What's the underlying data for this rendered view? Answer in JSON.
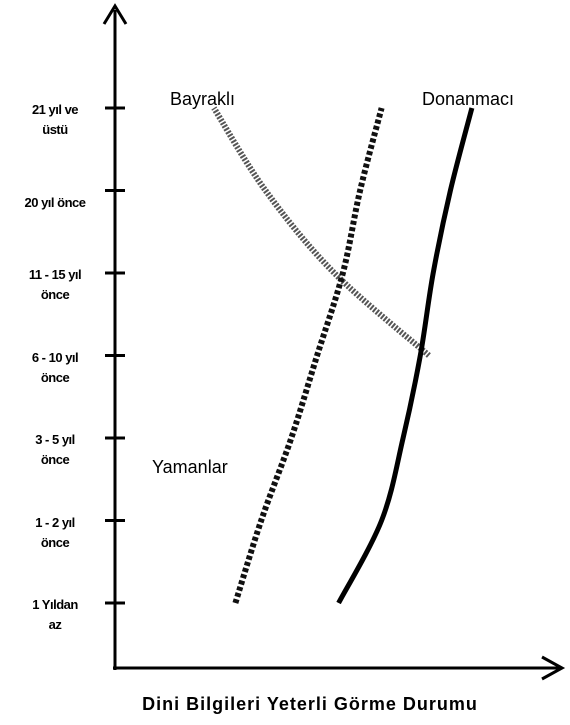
{
  "chart_data": {
    "type": "line",
    "xlabel": "Dini Bilgileri Yeterli Görme Durumu",
    "categories": [
      "1 Yıldan\naz",
      "1 - 2 yıl\nönce",
      "3 - 5 yıl\nönce",
      "6 - 10 yıl\nönce",
      "11 - 15 yıl\nönce",
      "20 yıl önce",
      "21 yıl ve\nüstü"
    ],
    "xlim": [
      0,
      100
    ],
    "series": [
      {
        "name": "Bayraklı",
        "color": "#555555",
        "values": [
          null,
          null,
          null,
          73,
          51,
          35,
          23
        ]
      },
      {
        "name": "Yamanlar",
        "color": "#111111",
        "values": [
          28,
          34,
          41,
          47,
          53,
          57,
          62
        ]
      },
      {
        "name": "Donanmacı",
        "color": "#000000",
        "values": [
          52,
          62,
          67,
          71,
          74,
          78,
          83
        ]
      }
    ]
  }
}
